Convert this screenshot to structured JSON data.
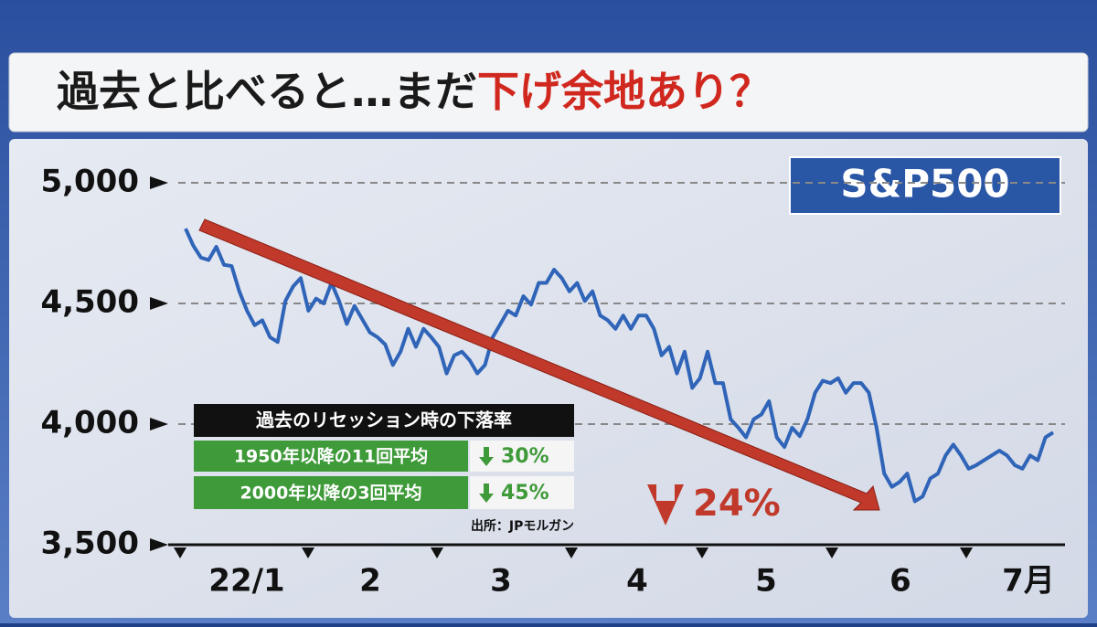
{
  "title": {
    "main": "過去と比べると…まだ",
    "highlight": "下げ余地あり？"
  },
  "chart_data": {
    "type": "line",
    "badge": "S&P500",
    "x_labels": [
      "22/1",
      "2",
      "3",
      "4",
      "5",
      "6",
      "7月"
    ],
    "color": "#2f64b8",
    "values": [
      4810,
      4740,
      4690,
      4680,
      4735,
      4660,
      4655,
      4550,
      4470,
      4410,
      4430,
      4360,
      4340,
      4510,
      4570,
      4605,
      4470,
      4520,
      4500,
      4585,
      4510,
      4415,
      4490,
      4435,
      4380,
      4360,
      4330,
      4245,
      4300,
      4395,
      4320,
      4395,
      4360,
      4320,
      4210,
      4285,
      4300,
      4265,
      4210,
      4245,
      4360,
      4415,
      4470,
      4450,
      4530,
      4495,
      4585,
      4585,
      4640,
      4605,
      4550,
      4585,
      4510,
      4550,
      4450,
      4430,
      4395,
      4450,
      4395,
      4450,
      4450,
      4395,
      4285,
      4320,
      4210,
      4300,
      4150,
      4190,
      4300,
      4170,
      4170,
      4020,
      3985,
      3945,
      4020,
      4040,
      4095,
      3945,
      3905,
      3985,
      3950,
      4020,
      4130,
      4180,
      4170,
      4190,
      4130,
      4170,
      4170,
      4130,
      3985,
      3795,
      3740,
      3760,
      3795,
      3680,
      3700,
      3775,
      3795,
      3870,
      3915,
      3870,
      3815,
      3830,
      3850,
      3870,
      3890,
      3870,
      3830,
      3815,
      3870,
      3850,
      3945,
      3965
    ],
    "ylim": [
      3500,
      5000
    ],
    "yticks": [
      {
        "value": 3500,
        "label": "3,500"
      },
      {
        "value": 4000,
        "label": "4,000"
      },
      {
        "value": 4500,
        "label": "4,500"
      },
      {
        "value": 5000,
        "label": "5,000"
      }
    ],
    "grid": true,
    "annotation": "24%"
  },
  "table": {
    "header": "過去のリセッション時の下落率",
    "rows": [
      [
        "1950年以降の11回平均",
        "30%"
      ],
      [
        "2000年以降の3回平均",
        "45%"
      ]
    ],
    "source": "出所：JPモルガン"
  }
}
